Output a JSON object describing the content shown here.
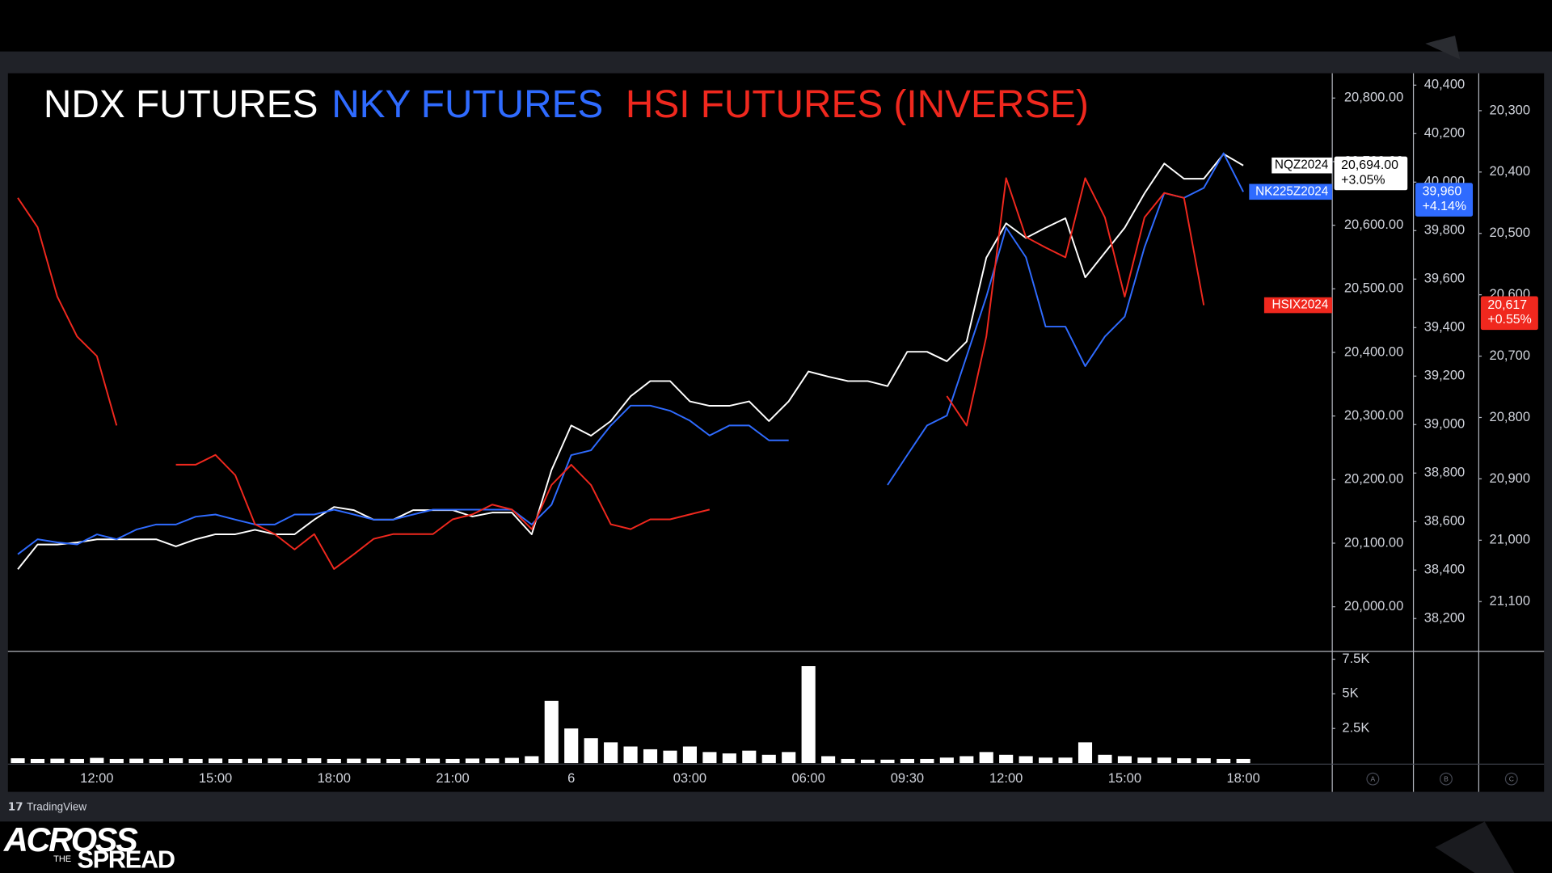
{
  "chart_data": {
    "type": "line",
    "categories": [
      null,
      null,
      null,
      null,
      "12:00",
      null,
      null,
      null,
      null,
      null,
      "15:00",
      null,
      null,
      null,
      null,
      null,
      "18:00",
      null,
      null,
      null,
      null,
      null,
      "21:00",
      null,
      null,
      null,
      null,
      null,
      "6",
      null,
      null,
      null,
      null,
      null,
      "03:00",
      null,
      null,
      null,
      null,
      null,
      "06:00",
      null,
      null,
      null,
      null,
      "09:30",
      null,
      null,
      null,
      null,
      "12:00",
      null,
      null,
      null,
      null,
      null,
      "15:00",
      null,
      null,
      null,
      null,
      null,
      "18:00",
      null,
      null,
      null,
      null
    ],
    "series": [
      {
        "name": "NDX FUTURES",
        "color": "#ffffff",
        "axis": "y",
        "ticker": "NQZ2024",
        "last_value_label": "20,694.00",
        "change_label": "+3.05%",
        "values": [
          20059,
          20098,
          20098,
          20101,
          20106,
          20106,
          20106,
          20106,
          20095,
          20106,
          20114,
          20114,
          20121,
          20114,
          20114,
          20137,
          20157,
          20152,
          20137,
          20137,
          20152,
          20152,
          20152,
          20142,
          20148,
          20148,
          20114,
          20215,
          20285,
          20269,
          20292,
          20331,
          20355,
          20355,
          20323,
          20316,
          20316,
          20323,
          20292,
          20323,
          20370,
          20362,
          20355,
          20355,
          20347,
          20401,
          20401,
          20386,
          20417,
          20549,
          20603,
          20580,
          20596,
          20611,
          20518,
          20557,
          20596,
          20650,
          20697,
          20673,
          20673,
          20712,
          20694,
          null,
          null,
          null,
          null
        ]
      },
      {
        "name": "NKY FUTURES",
        "color": "#2f6bff",
        "axis": "y2",
        "ticker": "NK225Z2024",
        "last_value_label": "39,960",
        "change_label": "+4.14%",
        "values": [
          38465,
          38527,
          38514,
          38506,
          38547,
          38527,
          38567,
          38588,
          38588,
          38620,
          38629,
          38608,
          38588,
          38588,
          38629,
          38629,
          38649,
          38629,
          38608,
          38608,
          38629,
          38649,
          38649,
          38649,
          38649,
          38649,
          38588,
          38669,
          38874,
          38894,
          38996,
          39078,
          39078,
          39057,
          39016,
          38955,
          38996,
          38996,
          38935,
          38935,
          null,
          null,
          null,
          null,
          38751,
          38874,
          38996,
          39037,
          39282,
          39527,
          39812,
          39690,
          39404,
          39404,
          39241,
          39363,
          39445,
          39731,
          39955,
          39935,
          39976,
          40119,
          39960,
          null,
          null,
          null,
          null
        ]
      },
      {
        "name": "HSI FUTURES (INVERSE)",
        "color": "#f0281e",
        "axis": "y3",
        "ticker": "HSIX2024",
        "last_value_label": "20,617",
        "change_label": "+0.55%",
        "values": [
          20442,
          20490,
          20603,
          20668,
          20700,
          20813,
          null,
          null,
          20877,
          20877,
          20861,
          20894,
          20974,
          20990,
          21015,
          20990,
          21047,
          21023,
          20998,
          20990,
          20990,
          20990,
          20966,
          20958,
          20942,
          20950,
          20982,
          20910,
          20877,
          20910,
          20974,
          20982,
          20966,
          20966,
          20958,
          20950,
          null,
          null,
          null,
          null,
          null,
          null,
          null,
          null,
          null,
          null,
          null,
          20765,
          20813,
          20668,
          20410,
          20506,
          20523,
          20539,
          20410,
          20474,
          20603,
          20474,
          20434,
          20442,
          20617,
          null,
          null,
          null,
          null,
          null,
          null
        ]
      }
    ],
    "ylim": [
      19930,
      20839
    ],
    "yticks": [
      {
        "value": 20000,
        "label": "20,000.00"
      },
      {
        "value": 20100,
        "label": "20,100.00"
      },
      {
        "value": 20200,
        "label": "20,200.00"
      },
      {
        "value": 20300,
        "label": "20,300.00"
      },
      {
        "value": 20400,
        "label": "20,400.00"
      },
      {
        "value": 20500,
        "label": "20,500.00"
      },
      {
        "value": 20600,
        "label": "20,600.00"
      },
      {
        "value": 20700,
        "label": "20,700.00"
      },
      {
        "value": 20800,
        "label": "20,800.00"
      }
    ],
    "y2lim": [
      38065,
      40449
    ],
    "y2ticks": [
      {
        "value": 38200,
        "label": "38,200"
      },
      {
        "value": 38400,
        "label": "38,400"
      },
      {
        "value": 38600,
        "label": "38,600"
      },
      {
        "value": 38800,
        "label": "38,800"
      },
      {
        "value": 39000,
        "label": "39,000"
      },
      {
        "value": 39200,
        "label": "39,200"
      },
      {
        "value": 39400,
        "label": "39,400"
      },
      {
        "value": 39600,
        "label": "39,600"
      },
      {
        "value": 39800,
        "label": "39,800"
      },
      {
        "value": 40000,
        "label": "40,000"
      },
      {
        "value": 40200,
        "label": "40,200"
      },
      {
        "value": 40400,
        "label": "40,400"
      }
    ],
    "y3lim": [
      21181,
      20239
    ],
    "y3ticks": [
      {
        "value": 20300,
        "label": "20,300"
      },
      {
        "value": 20400,
        "label": "20,400"
      },
      {
        "value": 20500,
        "label": "20,500"
      },
      {
        "value": 20600,
        "label": "20,600"
      },
      {
        "value": 20700,
        "label": "20,700"
      },
      {
        "value": 20800,
        "label": "20,800"
      },
      {
        "value": 20900,
        "label": "20,900"
      },
      {
        "value": 21000,
        "label": "21,000"
      },
      {
        "value": 21100,
        "label": "21,100"
      }
    ],
    "volume": {
      "type": "bar",
      "color": "#ffffff",
      "values": [
        350,
        300,
        320,
        300,
        380,
        300,
        320,
        300,
        350,
        300,
        330,
        300,
        320,
        340,
        300,
        350,
        300,
        320,
        330,
        300,
        350,
        320,
        300,
        330,
        340,
        380,
        500,
        4500,
        2500,
        1800,
        1500,
        1200,
        1000,
        900,
        1200,
        800,
        700,
        900,
        600,
        800,
        7000,
        500,
        300,
        250,
        250,
        300,
        300,
        400,
        500,
        800,
        600,
        500,
        400,
        400,
        1500,
        600,
        500,
        400,
        400,
        350,
        350,
        300,
        300,
        null,
        null,
        null,
        null
      ],
      "ylim": [
        0,
        8071
      ],
      "yticks": [
        {
          "value": 2500,
          "label": "2.5K"
        },
        {
          "value": 5000,
          "label": "5K"
        },
        {
          "value": 7500,
          "label": "7.5K"
        }
      ]
    },
    "axis_buttons": [
      "A",
      "B",
      "C"
    ],
    "watermark": "TradingView",
    "brand": {
      "line1": "ACROSS",
      "line2": "THE",
      "line3": "SPREAD"
    }
  }
}
